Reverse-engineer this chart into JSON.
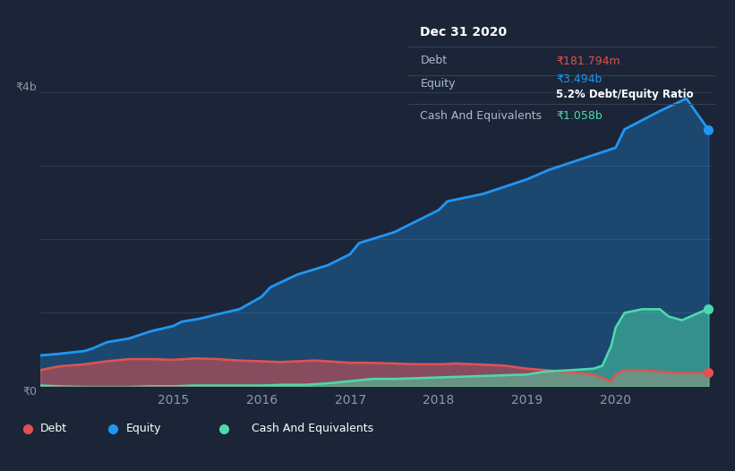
{
  "background_color": "#1b2537",
  "plot_bg_color": "#1b2537",
  "title": "Dec 31 2020",
  "debt_label": "Debt",
  "equity_label": "Equity",
  "cash_label": "Cash And Equivalents",
  "debt_value": "₹181.794m",
  "equity_value": "₹3.494b",
  "ratio_value": "5.2%",
  "cash_value": "₹1.058b",
  "debt_color": "#e05252",
  "equity_color": "#2196f3",
  "cash_color": "#4dd9ac",
  "ylabel_top": "₹4b",
  "ylabel_bottom": "₹0",
  "x_ticks": [
    "2015",
    "2016",
    "2017",
    "2018",
    "2019",
    "2020"
  ],
  "x_tick_pos": [
    2015,
    2016,
    2017,
    2018,
    2019,
    2020
  ],
  "legend_items": [
    "Debt",
    "Equity",
    "Cash And Equivalents"
  ],
  "equity_x": [
    2013.5,
    2013.7,
    2014.0,
    2014.1,
    2014.25,
    2014.5,
    2014.75,
    2015.0,
    2015.1,
    2015.3,
    2015.5,
    2015.75,
    2016.0,
    2016.1,
    2016.4,
    2016.75,
    2017.0,
    2017.1,
    2017.5,
    2017.75,
    2018.0,
    2018.1,
    2018.5,
    2018.75,
    2019.0,
    2019.25,
    2019.5,
    2019.75,
    2020.0,
    2020.1,
    2020.5,
    2020.8,
    2021.05
  ],
  "equity_y": [
    0.42,
    0.44,
    0.48,
    0.52,
    0.6,
    0.65,
    0.75,
    0.82,
    0.88,
    0.92,
    0.98,
    1.05,
    1.22,
    1.35,
    1.52,
    1.65,
    1.8,
    1.95,
    2.1,
    2.25,
    2.4,
    2.52,
    2.62,
    2.72,
    2.82,
    2.95,
    3.05,
    3.15,
    3.25,
    3.5,
    3.75,
    3.92,
    3.494
  ],
  "debt_x": [
    2013.5,
    2013.7,
    2014.0,
    2014.25,
    2014.5,
    2014.75,
    2015.0,
    2015.25,
    2015.5,
    2015.75,
    2016.0,
    2016.2,
    2016.4,
    2016.6,
    2016.75,
    2017.0,
    2017.2,
    2017.5,
    2017.75,
    2018.0,
    2018.2,
    2018.4,
    2018.6,
    2018.75,
    2019.0,
    2019.2,
    2019.5,
    2019.75,
    2019.85,
    2019.95,
    2020.0,
    2020.1,
    2020.3,
    2020.5,
    2020.75,
    2021.05
  ],
  "debt_y": [
    0.22,
    0.27,
    0.3,
    0.34,
    0.37,
    0.37,
    0.36,
    0.38,
    0.37,
    0.35,
    0.34,
    0.33,
    0.34,
    0.35,
    0.34,
    0.32,
    0.32,
    0.31,
    0.3,
    0.3,
    0.31,
    0.3,
    0.29,
    0.28,
    0.24,
    0.22,
    0.19,
    0.16,
    0.12,
    0.06,
    0.16,
    0.22,
    0.22,
    0.2,
    0.18,
    0.1818
  ],
  "cash_x": [
    2013.5,
    2013.7,
    2014.0,
    2014.25,
    2014.5,
    2014.75,
    2015.0,
    2015.25,
    2015.5,
    2015.75,
    2016.0,
    2016.25,
    2016.5,
    2016.75,
    2017.0,
    2017.25,
    2017.5,
    2017.75,
    2018.0,
    2018.25,
    2018.5,
    2018.75,
    2019.0,
    2019.1,
    2019.2,
    2019.5,
    2019.75,
    2019.85,
    2019.95,
    2020.0,
    2020.1,
    2020.3,
    2020.5,
    2020.6,
    2020.75,
    2021.05
  ],
  "cash_y": [
    0.01,
    0.0,
    -0.01,
    -0.01,
    -0.01,
    0.0,
    0.0,
    0.01,
    0.01,
    0.01,
    0.01,
    0.02,
    0.02,
    0.04,
    0.07,
    0.1,
    0.1,
    0.11,
    0.12,
    0.13,
    0.14,
    0.15,
    0.16,
    0.18,
    0.2,
    0.22,
    0.24,
    0.28,
    0.55,
    0.8,
    1.0,
    1.05,
    1.05,
    0.95,
    0.9,
    1.058
  ],
  "grid_lines_y": [
    0,
    1.0,
    2.0,
    3.0,
    4.0
  ],
  "ylim": [
    0,
    4.3
  ],
  "xlim": [
    2013.5,
    2021.1
  ]
}
